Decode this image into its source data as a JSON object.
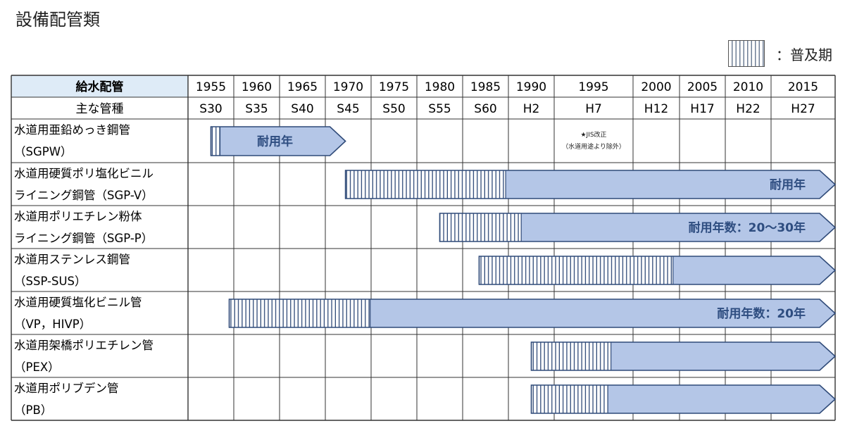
{
  "title": "設備配管類",
  "legend": {
    "label": "：普及期"
  },
  "table": {
    "header_label_1": "給水配管",
    "header_label_2": "主な管種",
    "years": [
      "1955",
      "1960",
      "1965",
      "1970",
      "1975",
      "1980",
      "1985",
      "1990",
      "1995",
      "2000",
      "2005",
      "2010",
      "2015"
    ],
    "eras": [
      "S30",
      "S35",
      "S40",
      "S45",
      "S50",
      "S55",
      "S60",
      "H2",
      "H7",
      "H12",
      "H17",
      "H22",
      "H27"
    ]
  },
  "rows": [
    {
      "line1": "水道用亜鉛めっき鋼管",
      "line2": "（SGPW）",
      "start": 1955,
      "popular_end": 1956,
      "end": 1969.7,
      "bar_label": "耐用年",
      "note_star": "★JIS改正",
      "note_sub": "（水道用途より除外）"
    },
    {
      "line1": "水道用硬質ポリ塩化ビニル",
      "line2": "ライニング鋼管（SGP-V）",
      "start": 1969.7,
      "popular_end": 1987.2,
      "end": 2019,
      "bar_label": "耐用年"
    },
    {
      "line1": "水道用ポリエチレン粉体",
      "line2": "ライニング鋼管（SGP-P）",
      "start": 1980,
      "popular_end": 1988.9,
      "end": 2019,
      "bar_label": "耐用年数：20〜30年"
    },
    {
      "line1": "水道用ステンレス鋼管",
      "line2": "（SSP-SUS）",
      "start": 1984.3,
      "popular_end": 2001.8,
      "end": 2019,
      "bar_label": ""
    },
    {
      "line1": "水道用硬質塩化ビニル管",
      "line2": "（VP，HIVP）",
      "start": 1957,
      "popular_end": 1972.4,
      "end": 2019,
      "bar_label": "耐用年数：20年"
    },
    {
      "line1": "水道用架橋ポリエチレン管",
      "line2": "（PEX）",
      "start": 1990,
      "popular_end": 1996.1,
      "end": 2019,
      "bar_label": ""
    },
    {
      "line1": "水道用ポリブデン管",
      "line2": "（PB）",
      "start": 1990,
      "popular_end": 1995.9,
      "end": 2019,
      "bar_label": ""
    }
  ],
  "colors": {
    "bar_fill": "#b4c6e7",
    "bar_stroke": "#2f4a78",
    "hatch_line": "#2f4a78",
    "header_fill": "#deebf7",
    "grid": "#333333"
  }
}
